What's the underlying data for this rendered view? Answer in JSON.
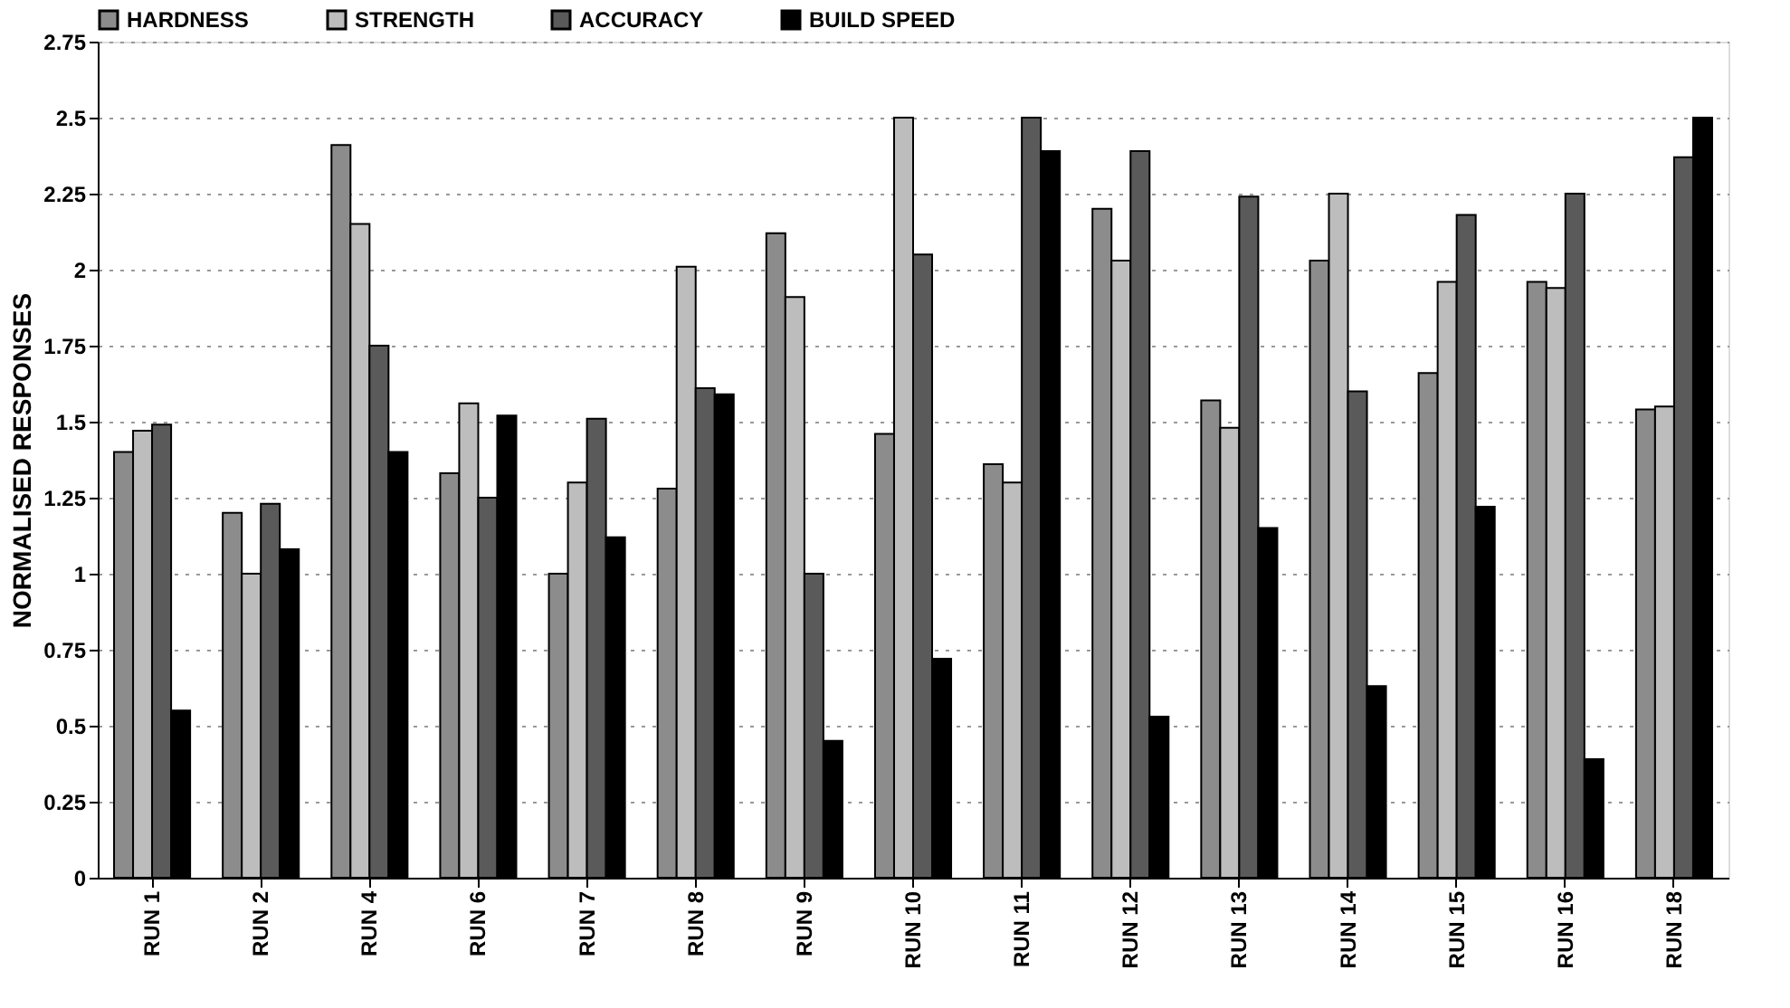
{
  "chart_data": {
    "type": "bar",
    "ylabel": "NORMALISED RESPONSES",
    "categories": [
      "RUN 1",
      "RUN 2",
      "RUN 4",
      "RUN 6",
      "RUN 7",
      "RUN 8",
      "RUN 9",
      "RUN 10",
      "RUN 11",
      "RUN 12",
      "RUN 13",
      "RUN 14",
      "RUN 15",
      "RUN 16",
      "RUN 18"
    ],
    "series": [
      {
        "name": "HARDNESS",
        "color": "#8c8c8c",
        "values": [
          1.4,
          1.2,
          2.41,
          1.33,
          1.0,
          1.28,
          2.12,
          1.46,
          1.36,
          2.2,
          1.57,
          2.03,
          1.66,
          1.96,
          1.54
        ]
      },
      {
        "name": "STRENGTH",
        "color": "#bdbdbd",
        "values": [
          1.47,
          1.0,
          2.15,
          1.56,
          1.3,
          2.01,
          1.91,
          2.5,
          1.3,
          2.03,
          1.48,
          2.25,
          1.96,
          1.94,
          1.55
        ]
      },
      {
        "name": "ACCURACY",
        "color": "#5a5a5a",
        "values": [
          1.49,
          1.23,
          1.75,
          1.25,
          1.51,
          1.61,
          1.0,
          2.05,
          2.5,
          2.39,
          2.24,
          1.6,
          2.18,
          2.25,
          2.37
        ]
      },
      {
        "name": "BUILD SPEED",
        "color": "#000000",
        "values": [
          0.55,
          1.08,
          1.4,
          1.52,
          1.12,
          1.59,
          0.45,
          0.72,
          2.39,
          0.53,
          1.15,
          0.63,
          1.22,
          0.39,
          2.5
        ]
      }
    ],
    "ylim": [
      0,
      2.75
    ],
    "yticks": [
      0,
      0.25,
      0.5,
      0.75,
      1,
      1.25,
      1.5,
      1.75,
      2,
      2.25,
      2.5,
      2.75
    ],
    "grid": "y",
    "legend": "top"
  }
}
